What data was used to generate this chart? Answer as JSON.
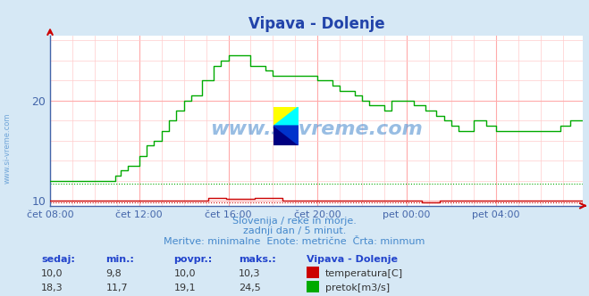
{
  "title": "Vipava - Dolenje",
  "bg_color": "#d6e8f5",
  "plot_bg_color": "#ffffff",
  "grid_color_major": "#ffaaaa",
  "grid_color_minor": "#ffcccc",
  "x_labels": [
    "čet 08:00",
    "čet 12:00",
    "čet 16:00",
    "čet 20:00",
    "pet 00:00",
    "pet 04:00"
  ],
  "x_ticks_pos": [
    0,
    48,
    96,
    144,
    192,
    240
  ],
  "total_points": 288,
  "y_min": 9.5,
  "y_max": 26.5,
  "y_ticks": [
    10,
    20
  ],
  "subtitle1": "Slovenija / reke in morje.",
  "subtitle2": "zadnji dan / 5 minut.",
  "subtitle3": "Meritve: minimalne  Enote: metrične  Črta: minmum",
  "watermark": "www.si-vreme.com",
  "temp_color": "#cc0000",
  "flow_color": "#00aa00",
  "footer_color": "#4488cc",
  "table_headers": [
    "sedaj:",
    "min.:",
    "povpr.:",
    "maks.:"
  ],
  "table_temp": [
    "10,0",
    "9,8",
    "10,0",
    "10,3"
  ],
  "table_flow": [
    "18,3",
    "11,7",
    "19,1",
    "24,5"
  ],
  "legend_title": "Vipava - Dolenje",
  "legend_temp": "temperatura[C]",
  "legend_flow": "pretok[m3/s]",
  "temp_min_line": 9.8,
  "flow_min_line": 11.7
}
